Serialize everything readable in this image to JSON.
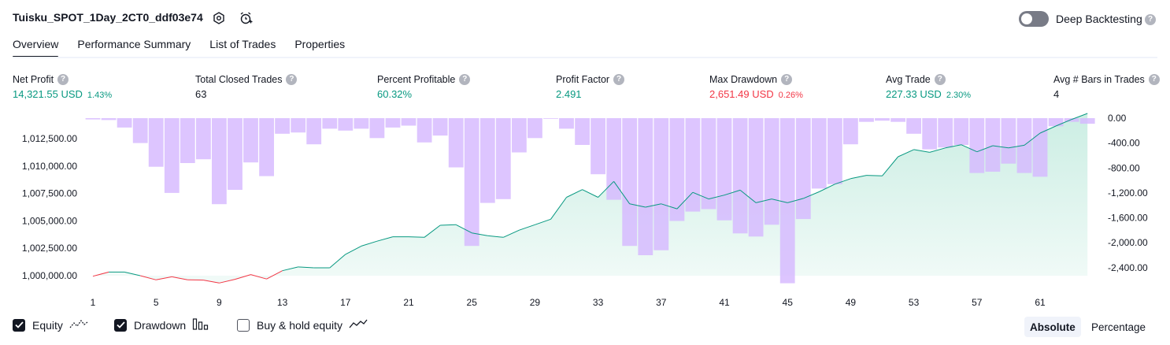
{
  "header": {
    "title": "Tuisku_SPOT_1Day_2CT0_ddf03e74",
    "deep_backtesting_label": "Deep Backtesting",
    "help_glyph": "?"
  },
  "tabs": [
    {
      "label": "Overview",
      "active": true
    },
    {
      "label": "Performance Summary",
      "active": false
    },
    {
      "label": "List of Trades",
      "active": false
    },
    {
      "label": "Properties",
      "active": false
    }
  ],
  "stats": [
    {
      "label": "Net Profit",
      "value": "14,321.55 USD",
      "pct": "1.43%",
      "color": "#089981"
    },
    {
      "label": "Total Closed Trades",
      "value": "63",
      "pct": "",
      "color": "#131722"
    },
    {
      "label": "Percent Profitable",
      "value": "60.32%",
      "pct": "",
      "color": "#089981"
    },
    {
      "label": "Profit Factor",
      "value": "2.491",
      "pct": "",
      "color": "#089981"
    },
    {
      "label": "Max Drawdown",
      "value": "2,651.49 USD",
      "pct": "0.26%",
      "color": "#f23645"
    },
    {
      "label": "Avg Trade",
      "value": "227.33 USD",
      "pct": "2.30%",
      "color": "#089981"
    },
    {
      "label": "Avg # Bars in Trades",
      "value": "4",
      "pct": "",
      "color": "#131722"
    }
  ],
  "legend": {
    "equity_label": "Equity",
    "drawdown_label": "Drawdown",
    "buyhold_label": "Buy & hold equity",
    "equity_checked": true,
    "drawdown_checked": true,
    "buyhold_checked": false
  },
  "scale_toggle": {
    "absolute_label": "Absolute",
    "percentage_label": "Percentage",
    "selected": "Absolute"
  },
  "colors": {
    "equity_up": "#089981",
    "equity_down": "#f23645",
    "drawdown": "#d6b8ff",
    "equity_fill": "#c9ede2"
  },
  "chart_data": {
    "type": "bar",
    "x_ticks": [
      "1",
      "5",
      "9",
      "13",
      "17",
      "21",
      "25",
      "29",
      "33",
      "37",
      "41",
      "45",
      "49",
      "53",
      "57",
      "61"
    ],
    "left_axis_ticks": [
      "1,012,500.00",
      "1,010,000.00",
      "1,007,500.00",
      "1,005,000.00",
      "1,002,500.00",
      "1,000,000.00"
    ],
    "right_axis_ticks": [
      "0.00",
      "-400.00",
      "-800.00",
      "-1,200.00",
      "-1,600.00",
      "-2,000.00",
      "-2,400.00"
    ],
    "left_ylim": [
      999000,
      1014000
    ],
    "right_ylim": [
      -2700,
      0
    ],
    "x": [
      1,
      2,
      3,
      4,
      5,
      6,
      7,
      8,
      9,
      10,
      11,
      12,
      13,
      14,
      15,
      16,
      17,
      18,
      19,
      20,
      21,
      22,
      23,
      24,
      25,
      26,
      27,
      28,
      29,
      30,
      31,
      32,
      33,
      34,
      35,
      36,
      37,
      38,
      39,
      40,
      41,
      42,
      43,
      44,
      45,
      46,
      47,
      48,
      49,
      50,
      51,
      52,
      53,
      54,
      55,
      56,
      57,
      58,
      59,
      60,
      61,
      62,
      63,
      64
    ],
    "series": [
      {
        "name": "Equity",
        "values": [
          999950,
          1000330,
          1000330,
          1000000,
          999620,
          999900,
          999620,
          999600,
          999330,
          999670,
          1000100,
          999700,
          1000450,
          1000800,
          1000720,
          1000720,
          1001950,
          1002700,
          1003150,
          1003550,
          1003550,
          1003500,
          1004600,
          1004650,
          1003900,
          1003650,
          1003500,
          1004150,
          1004650,
          1005150,
          1007150,
          1007850,
          1007150,
          1008600,
          1006550,
          1006250,
          1006550,
          1006100,
          1007600,
          1007000,
          1007350,
          1007800,
          1006650,
          1007000,
          1006650,
          1007050,
          1007650,
          1008350,
          1008850,
          1009150,
          1009100,
          1010850,
          1011500,
          1011250,
          1011650,
          1011950,
          1011300,
          1011850,
          1011650,
          1011900,
          1013000,
          1013650,
          1014250,
          1014800
        ]
      },
      {
        "name": "Drawdown",
        "values": [
          -20,
          -30,
          -150,
          -400,
          -780,
          -1200,
          -720,
          -660,
          -1380,
          -1150,
          -710,
          -930,
          -250,
          -230,
          -420,
          -170,
          -200,
          -170,
          -320,
          -150,
          -120,
          -390,
          -280,
          -790,
          -2050,
          -1360,
          -1300,
          -550,
          -320,
          0,
          -170,
          -430,
          -900,
          -1310,
          -2050,
          -2200,
          -2120,
          -1650,
          -1500,
          -1460,
          -1640,
          -1850,
          -1900,
          -1710,
          -2650,
          -1620,
          -1130,
          -1060,
          -420,
          -60,
          -40,
          -60,
          -250,
          -500,
          -470,
          -430,
          -880,
          -860,
          -730,
          -880,
          -940,
          -130,
          -60,
          -90
        ]
      }
    ]
  }
}
